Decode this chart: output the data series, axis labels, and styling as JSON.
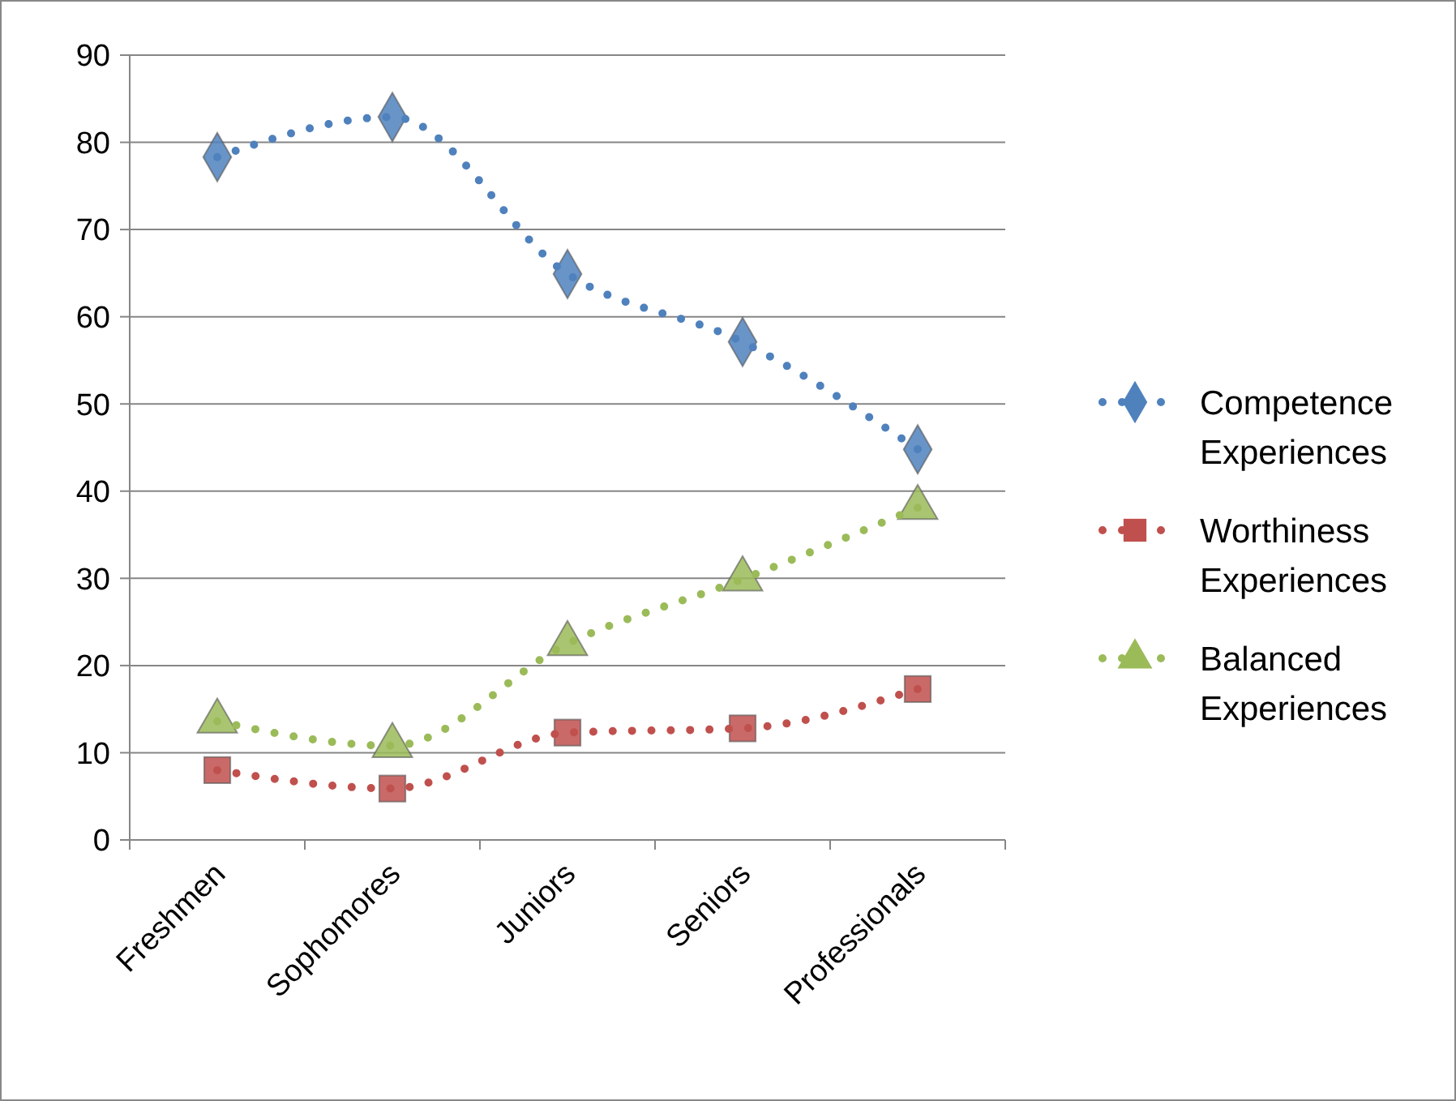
{
  "chart_data": {
    "type": "line",
    "categories": [
      "Freshmen",
      "Sophomores",
      "Juniors",
      "Seniors",
      "Professionals"
    ],
    "series": [
      {
        "name": "Competence Experiences",
        "color": "#4f81bd",
        "marker": "diamond",
        "values": [
          78.3,
          82.9,
          64.9,
          57.1,
          44.8
        ]
      },
      {
        "name": "Worthiness Experiences",
        "color": "#c0504d",
        "marker": "square",
        "values": [
          8.0,
          5.9,
          12.3,
          12.8,
          17.3
        ]
      },
      {
        "name": "Balanced Experiences",
        "color": "#9bbb59",
        "marker": "triangle",
        "values": [
          13.6,
          10.8,
          22.5,
          29.9,
          38.1
        ]
      }
    ],
    "ylim": [
      0,
      90
    ],
    "yticks": [
      0,
      10,
      20,
      30,
      40,
      50,
      60,
      70,
      80,
      90
    ],
    "grid": "y",
    "legend": "right",
    "line_style": "dotted"
  }
}
